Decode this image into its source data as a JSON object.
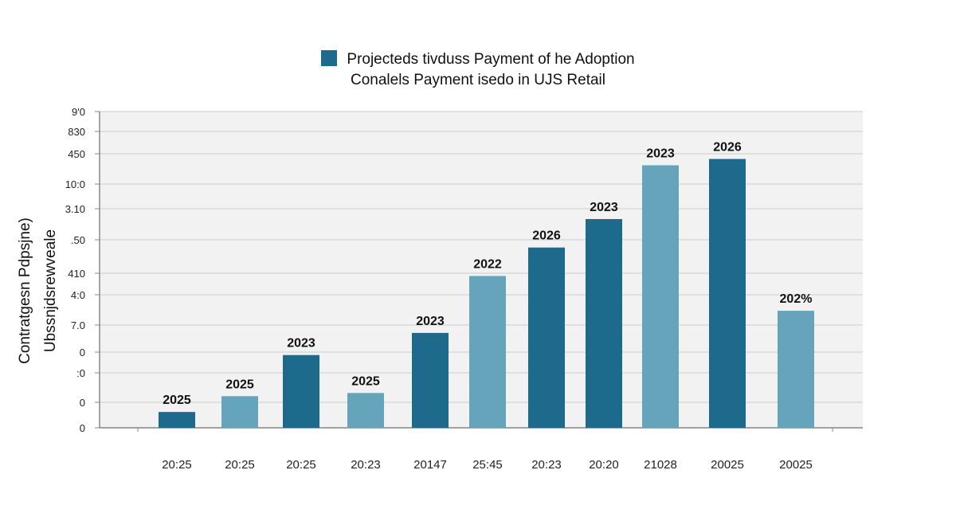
{
  "chart_data": {
    "type": "bar",
    "title_line1": "Projecteds tivduss Payment of he Adoption",
    "title_line2": "Conalels Payment isedo in UJS Retail",
    "legend_placement": "top",
    "ylabel_line1": "Contratgesn Pdpsjne)",
    "ylabel_line2": "Ubssnjdsrewveale",
    "xlabel": "",
    "y_tick_labels_top_to_bottom": [
      "9'0",
      "830",
      "450",
      "10:0",
      "3.10",
      ".50",
      "410",
      "4:0",
      "7.0",
      "0",
      ":0",
      "0",
      "0"
    ],
    "ylim": [
      0,
      100
    ],
    "grid": true,
    "categories": [
      "20:25",
      "20:25",
      "20:25",
      "20:23",
      "20147",
      "25:45",
      "20:23",
      "20:20",
      "21028",
      "20025",
      "20025"
    ],
    "values": [
      5,
      10,
      23,
      11,
      30,
      48,
      57,
      66,
      83,
      85,
      37
    ],
    "data_labels": [
      "2025",
      "2025",
      "2023",
      "2025",
      "2023",
      "2022",
      "2026",
      "2023",
      "2023",
      "2026",
      "202%"
    ],
    "bar_shades": [
      "dark",
      "light",
      "dark",
      "light",
      "dark",
      "light",
      "dark",
      "dark",
      "light",
      "dark",
      "light"
    ],
    "colors": {
      "dark": "#1d6a8c",
      "light": "#65a4bb",
      "plot_bg": "#f2f2f2",
      "grid": "#d4d4d4",
      "axis": "#888888"
    }
  }
}
